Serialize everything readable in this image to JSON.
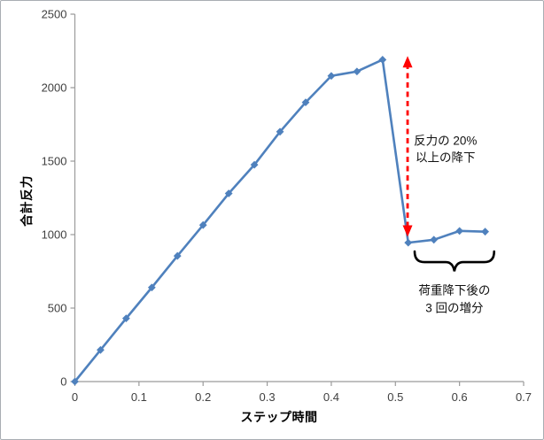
{
  "chart_data": {
    "type": "line",
    "title": "",
    "xlabel": "ステップ時間",
    "ylabel": "合計反力",
    "xlim": [
      0,
      0.7
    ],
    "ylim": [
      0,
      2500
    ],
    "xticks": [
      0,
      0.1,
      0.2,
      0.3,
      0.4,
      0.5,
      0.6,
      0.7
    ],
    "yticks": [
      0,
      500,
      1000,
      1500,
      2000,
      2500
    ],
    "grid": false,
    "legend": "none",
    "colors": {
      "series": "#4F81BD",
      "axis": "#9b9b9b",
      "tick_label": "#404040",
      "arrow": "#FF0000",
      "brace": "#000000"
    },
    "series": [
      {
        "name": "合計反力",
        "marker": "diamond",
        "x": [
          0,
          0.04,
          0.08,
          0.12,
          0.16,
          0.2,
          0.24,
          0.28,
          0.32,
          0.36,
          0.4,
          0.44,
          0.48,
          0.52,
          0.56,
          0.6,
          0.64
        ],
        "y": [
          0,
          215,
          430,
          640,
          855,
          1065,
          1280,
          1475,
          1700,
          1900,
          2080,
          2110,
          2190,
          945,
          965,
          1025,
          1020
        ]
      }
    ],
    "annotations": {
      "arrow": {
        "type": "double-headed-dashed-arrow",
        "x": 0.519,
        "y_from": 985,
        "y_to": 2215,
        "label": "反力の 20%\n以上の降下",
        "label_x": 0.578,
        "label_y": 1580
      },
      "brace": {
        "type": "horizontal-curly-brace-tip-down",
        "x_from": 0.53,
        "x_to": 0.654,
        "y_top": 885,
        "y_bar": 813,
        "y_tip": 750,
        "label": "荷重降下後の\n3 回の増分",
        "label_x": 0.592,
        "label_y": 560
      }
    }
  }
}
